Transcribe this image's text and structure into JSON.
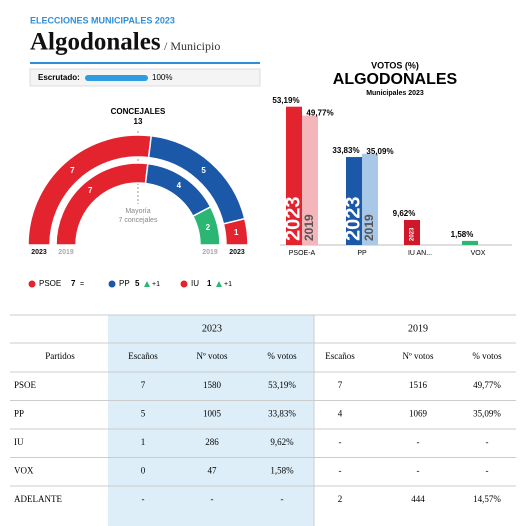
{
  "header": {
    "kicker": "ELECCIONES MUNICIPALES 2023",
    "title": "Algodonales",
    "subtitle": "/ Municipio",
    "scrutiny": {
      "label": "Escrutado:",
      "value": 100,
      "value_label": "100%"
    }
  },
  "seats": {
    "title": "CONCEJALES",
    "total": 13,
    "majority": [
      "Mayoría",
      "7 concejales"
    ],
    "rings": [
      {
        "label": "2023",
        "values": [
          7,
          5,
          1
        ],
        "colors": [
          "#e3232e",
          "#1b58a8",
          "#e3232e"
        ]
      },
      {
        "label": "2019",
        "values": [
          7,
          4,
          2
        ],
        "colors": [
          "#e3232e",
          "#1b58a8",
          "#2bb673"
        ]
      }
    ],
    "legend": [
      {
        "name": "PSOE",
        "seats": 7,
        "change": "=",
        "color": "#e3232e"
      },
      {
        "name": "PP",
        "seats": 5,
        "change": "+1",
        "color": "#1b58a8"
      },
      {
        "name": "IU",
        "seats": 1,
        "change": "+1",
        "color": "#e3232e"
      }
    ]
  },
  "chart_data": {
    "type": "bar",
    "title": "VOTOS (%)",
    "subtitle": "ALGODONALES",
    "caption": "Municipales 2023",
    "categories": [
      "PSOE-A",
      "PP",
      "IU AN...",
      "VOX"
    ],
    "series": [
      {
        "name": "2023",
        "colors": [
          "#e3232e",
          "#1b58a8",
          "#d0182a",
          "#2bb673"
        ],
        "values": [
          53.19,
          33.83,
          9.62,
          1.58
        ],
        "value_labels": [
          "53,19%",
          "33,83%",
          "9,62%",
          "1,58%"
        ]
      },
      {
        "name": "2019",
        "colors": [
          "#f4b6bb",
          "#a9c8e8",
          "#f4b6bb",
          "#a6e0c4"
        ],
        "values": [
          49.77,
          35.09,
          null,
          null
        ],
        "value_labels": [
          "49,77%",
          "35,09%",
          null,
          null
        ]
      }
    ]
  },
  "table": {
    "groups": [
      "2023",
      "2019"
    ],
    "header": [
      "Partidos",
      "Escaños",
      "Nº votos",
      "% votos",
      "Escaños",
      "Nº votos",
      "% votos"
    ],
    "rows": [
      [
        "PSOE",
        7,
        1580,
        "53,19%",
        7,
        1516,
        "49,77%"
      ],
      [
        "PP",
        5,
        1005,
        "33,83%",
        4,
        1069,
        "35,09%"
      ],
      [
        "IU",
        1,
        286,
        "9,62%",
        "-",
        "-",
        "-"
      ],
      [
        "VOX",
        0,
        47,
        "1,58%",
        "-",
        "-",
        "-"
      ],
      [
        "ADELANTE",
        "-",
        "-",
        "-",
        2,
        444,
        "14,57%"
      ]
    ]
  }
}
